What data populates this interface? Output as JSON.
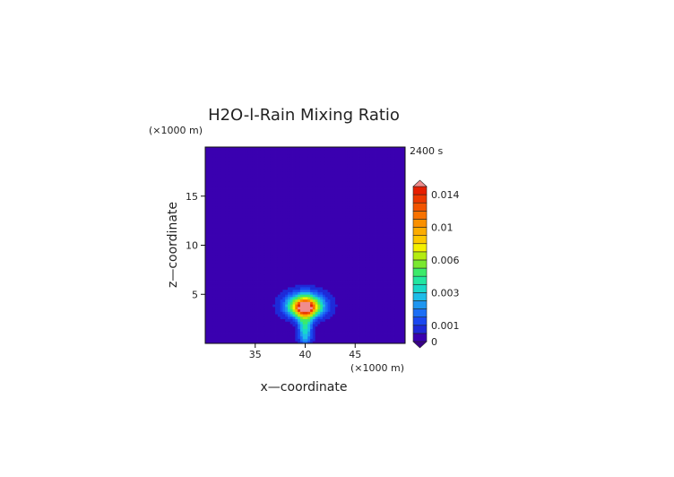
{
  "chart_data": {
    "type": "heatmap",
    "title": "H2O-l-Rain Mixing Ratio",
    "time_label": "2400 s",
    "xlabel": "x—coordinate",
    "ylabel": "z—coordinate",
    "x_unit": "(×1000 m)",
    "y_unit": "(×1000 m)",
    "xlim": [
      30,
      50
    ],
    "ylim": [
      0,
      20
    ],
    "x_ticks": [
      {
        "value": 35,
        "label": "35"
      },
      {
        "value": 40,
        "label": "40"
      },
      {
        "value": 45,
        "label": "45"
      }
    ],
    "y_ticks": [
      {
        "value": 5,
        "label": "5"
      },
      {
        "value": 10,
        "label": "10"
      },
      {
        "value": 15,
        "label": "15"
      }
    ],
    "grid": false,
    "colorbar": {
      "placement": "right",
      "levels": [
        0,
        0.0005,
        0.001,
        0.0015,
        0.002,
        0.0025,
        0.003,
        0.0035,
        0.004,
        0.005,
        0.006,
        0.007,
        0.008,
        0.009,
        0.01,
        0.011,
        0.012,
        0.013,
        0.014,
        0.015
      ],
      "colors": [
        "#3a00b0",
        "#1e2ad8",
        "#1a48f0",
        "#1c6ef5",
        "#1e96f0",
        "#1cbce8",
        "#18d8c8",
        "#22e6a0",
        "#3cea6a",
        "#7ae830",
        "#b4ec10",
        "#f4f000",
        "#fcc800",
        "#fcac00",
        "#fa9000",
        "#f87200",
        "#f25400",
        "#ec3800",
        "#e61e00"
      ],
      "under_color": "#3a008a",
      "over_color": "#f08c8c",
      "tick_labels": [
        {
          "value": 0,
          "label": "0"
        },
        {
          "value": 0.001,
          "label": "0.001"
        },
        {
          "value": 0.003,
          "label": "0.003"
        },
        {
          "value": 0.006,
          "label": "0.006"
        },
        {
          "value": 0.01,
          "label": "0.01"
        },
        {
          "value": 0.014,
          "label": "0.014"
        }
      ]
    },
    "field_features": [
      {
        "x": 40,
        "z": 3.7,
        "peak": 0.0145,
        "sx": 0.7,
        "sz": 0.5
      },
      {
        "x": 40,
        "z": 3.9,
        "peak": 0.0055,
        "sx": 1.3,
        "sz": 0.85
      },
      {
        "x": 40,
        "z": 2.0,
        "peak": 0.0035,
        "sx": 0.45,
        "sz": 1.6
      }
    ]
  }
}
